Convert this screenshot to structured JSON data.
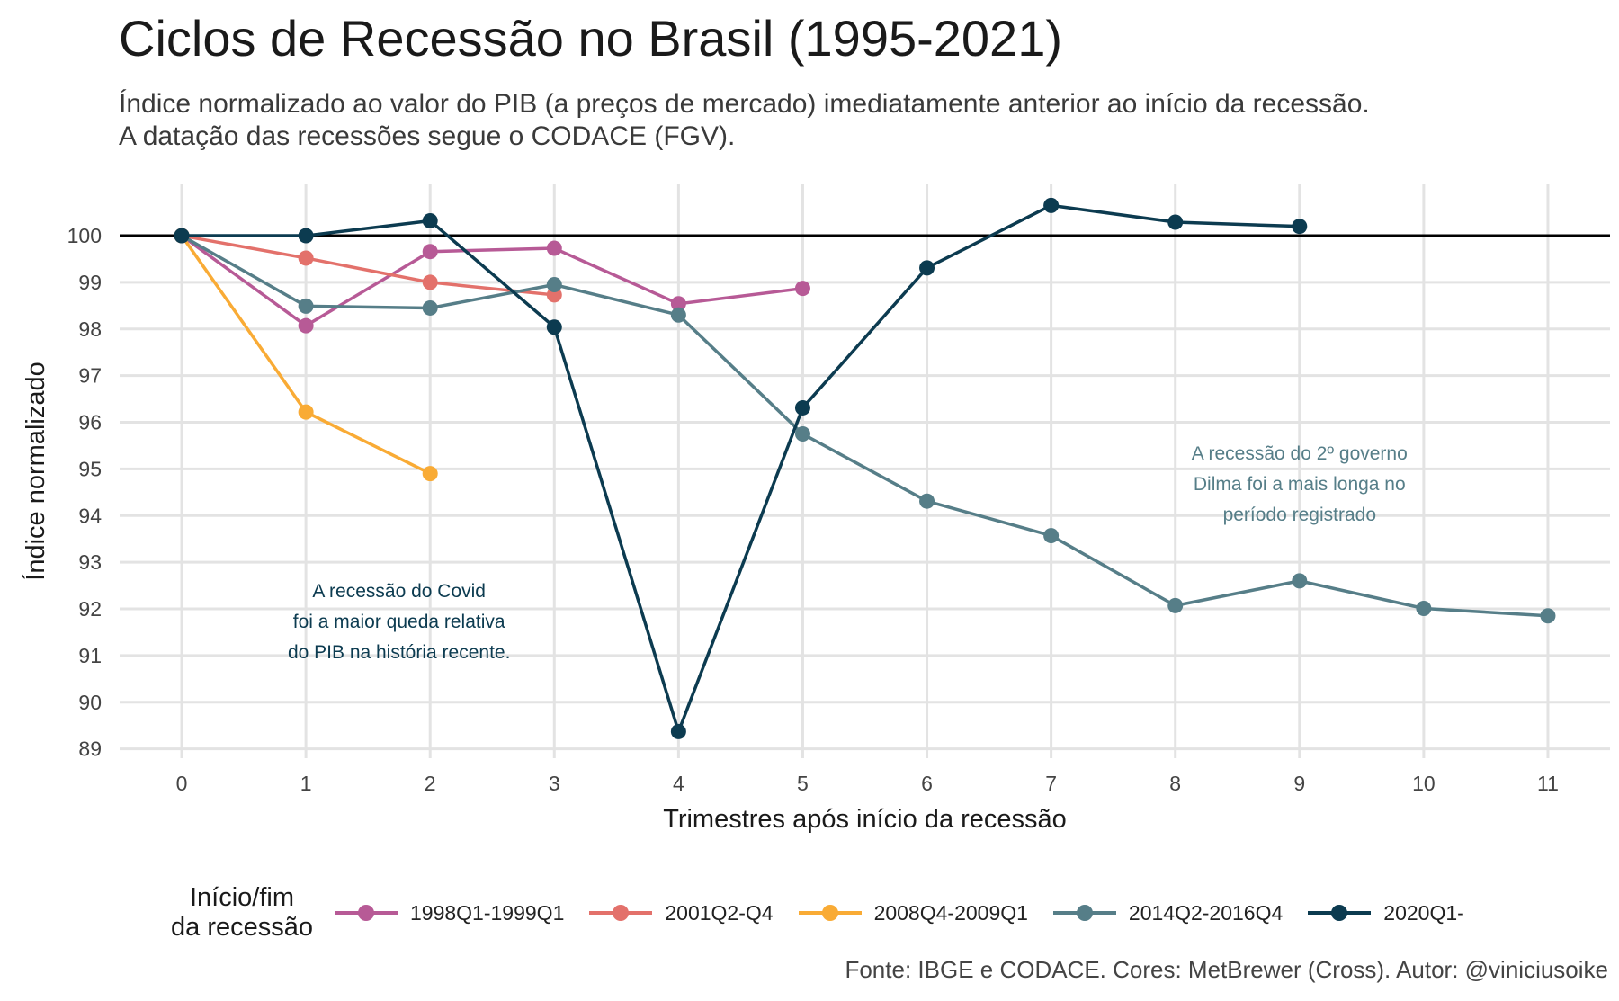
{
  "title": "Ciclos de Recessão no Brasil (1995-2021)",
  "subtitle_line1": "Índice normalizado ao valor do PIB (a preços de mercado) imediatamente anterior ao início da recessão.",
  "subtitle_line2": "A datação das recessões segue o CODACE (FGV).",
  "caption": "Fonte: IBGE e CODACE. Cores: MetBrewer (Cross). Autor: @viniciusoike",
  "legend": {
    "title_line1": "Início/fim",
    "title_line2": "da recessão"
  },
  "chart_data": {
    "type": "line",
    "xlabel": "Trimestres após início da recessão",
    "ylabel": "Índice normalizado",
    "xlim": [
      -0.5,
      11.5
    ],
    "ylim": [
      88.8,
      101.1
    ],
    "x_ticks": [
      0,
      1,
      2,
      3,
      4,
      5,
      6,
      7,
      8,
      9,
      10,
      11
    ],
    "y_ticks": [
      89,
      90,
      91,
      92,
      93,
      94,
      95,
      96,
      97,
      98,
      99,
      100
    ],
    "reference_line": 100,
    "grid": true,
    "legend_position": "bottom",
    "series": [
      {
        "name": "1998Q1-1999Q1",
        "color": "#b75a96",
        "x": [
          0,
          1,
          2,
          3,
          4,
          5
        ],
        "y": [
          100,
          98.07,
          99.66,
          99.73,
          98.54,
          98.87
        ]
      },
      {
        "name": "2001Q2-Q4",
        "color": "#e3716b",
        "x": [
          0,
          1,
          2,
          3
        ],
        "y": [
          100,
          99.52,
          99.0,
          98.73
        ]
      },
      {
        "name": "2008Q4-2009Q1",
        "color": "#f9ab35",
        "x": [
          0,
          1,
          2
        ],
        "y": [
          100,
          96.22,
          94.9
        ]
      },
      {
        "name": "2014Q2-2016Q4",
        "color": "#567e88",
        "x": [
          0,
          1,
          2,
          3,
          4,
          5,
          6,
          7,
          8,
          9,
          10,
          11
        ],
        "y": [
          100,
          98.49,
          98.45,
          98.95,
          98.3,
          95.75,
          94.31,
          93.57,
          92.07,
          92.6,
          92.01,
          91.85
        ]
      },
      {
        "name": "2020Q1-",
        "color": "#0c3b50",
        "x": [
          0,
          1,
          2,
          3,
          4,
          5,
          6,
          7,
          8,
          9
        ],
        "y": [
          100,
          100,
          100.32,
          98.04,
          89.37,
          96.31,
          99.31,
          100.65,
          100.29,
          100.2
        ]
      }
    ],
    "annotations": [
      {
        "lines": [
          "A recessão do Covid",
          "foi a maior queda relativa",
          "do PIB na história recente."
        ],
        "x": 1.75,
        "y": 92.25,
        "color": "#0c3b50"
      },
      {
        "lines": [
          "A recessão do 2º governo",
          "Dilma foi a mais longa no",
          "período registrado"
        ],
        "x": 9.0,
        "y": 95.2,
        "color": "#567e88"
      }
    ]
  }
}
